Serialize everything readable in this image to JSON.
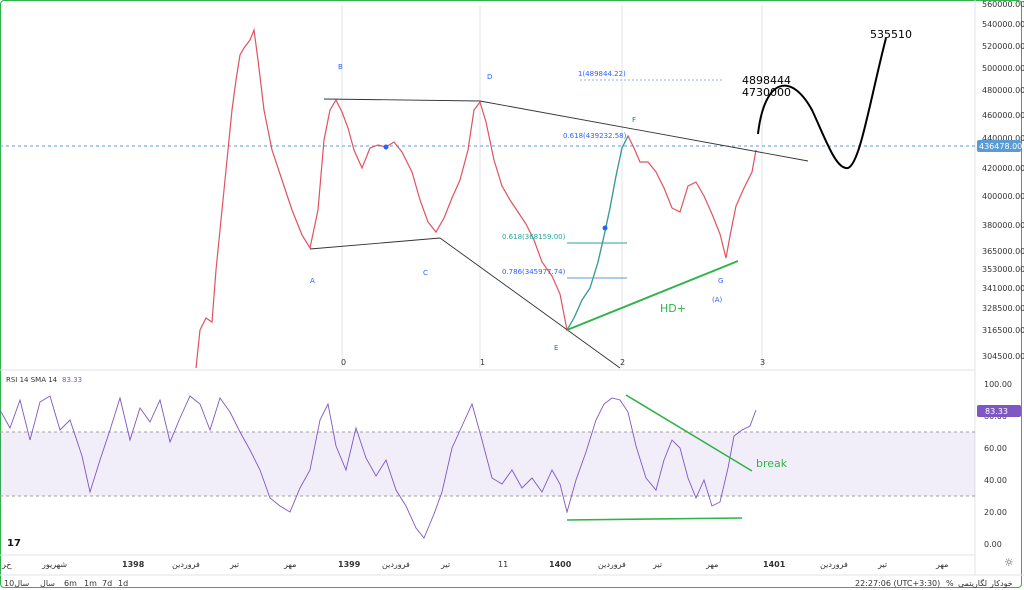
{
  "price_axis": {
    "ticks": [
      "560000.00",
      "540000.00",
      "520000.00",
      "500000.00",
      "480000.00",
      "460000.00",
      "440000.00",
      "420000.00",
      "400000.00",
      "380000.00",
      "365000.00",
      "353000.00",
      "341000.00",
      "328500.00",
      "316500.00",
      "304500.00"
    ],
    "last_price": "436478.00"
  },
  "rsi_panel": {
    "label": "RSI 14 SMA 14",
    "value": "83.33",
    "ticks": [
      "100.00",
      "80.00",
      "60.00",
      "40.00",
      "20.00",
      "0.00"
    ],
    "break_label": "break"
  },
  "time_axis": {
    "labels": [
      "ﺥﺮ",
      "ﺷﻬﺮﯾﻮﺭ",
      "1398",
      "ﻓﺮﻭﺭﺩﯾﻦ",
      "ﺗﯿﺮ",
      "ﻣﻬﺮ",
      "1399",
      "ﻓﺮﻭﺭﺩﯾﻦ",
      "ﺗﯿﺮ",
      "11",
      "1400",
      "ﻓﺮﻭﺭﺩﯾﻦ",
      "ﺗﯿﺮ",
      "ﻣﻬﺮ",
      "1401",
      "ﻓﺮﻭﺭﺩﯾﻦ",
      "ﺗﯿﺮ",
      "ﻣﻬﺮ"
    ]
  },
  "wave_labels": [
    "B",
    "D",
    "F",
    "A",
    "C",
    "E",
    "G",
    "(A)"
  ],
  "cycle_labels": [
    "0",
    "1",
    "2",
    "3"
  ],
  "fib_labels": {
    "f1": "1(489844.22)",
    "f618top": "0.618(439232.58)",
    "f618": "0.618(368159.00)",
    "f786": "0.786(345977.74)"
  },
  "targets": {
    "t1": "4898444",
    "t2": "4730000",
    "t3": "535510"
  },
  "pattern_label": "HD+",
  "bottom_bar": {
    "timeframes": [
      "10ﺳﺎﻝ",
      "ﺳﺎﻝ",
      "6m",
      "1m",
      "7d",
      "1d"
    ],
    "clock": "22:27:06 (UTC+3:30)",
    "percent": "%",
    "log": "ﻟﮕﺎﺭﯾﺘﻤﯽ",
    "auto": "ﺧﻮﺩﮐﺎﺭ"
  },
  "chart_data": [
    {
      "type": "line",
      "title": "",
      "price_ticks": [
        560000,
        540000,
        520000,
        500000,
        480000,
        460000,
        440000,
        420000,
        400000,
        380000,
        365000,
        353000,
        341000,
        328500,
        316500,
        304500
      ],
      "last_price": 436478.0,
      "pattern_points": {
        "A": 362000,
        "B": 473000,
        "C": 369000,
        "D": 473000,
        "E": 318000,
        "F": 450000,
        "G": 353000
      },
      "fib_levels": [
        {
          "label": "1",
          "value": 489844.22
        },
        {
          "label": "0.618",
          "value": 439232.58
        },
        {
          "label": "0.618",
          "value": 368159.0
        },
        {
          "label": "0.786",
          "value": 345977.74
        }
      ],
      "targets": [
        4898444,
        4730000,
        535510
      ],
      "annotation": "HD+"
    },
    {
      "type": "line",
      "title": "RSI 14 SMA 14",
      "current_value": 83.33,
      "ylim": [
        0,
        100
      ],
      "band": [
        30,
        70
      ],
      "ticks": [
        100,
        80,
        60,
        40,
        20,
        0
      ],
      "annotation": "break"
    }
  ]
}
